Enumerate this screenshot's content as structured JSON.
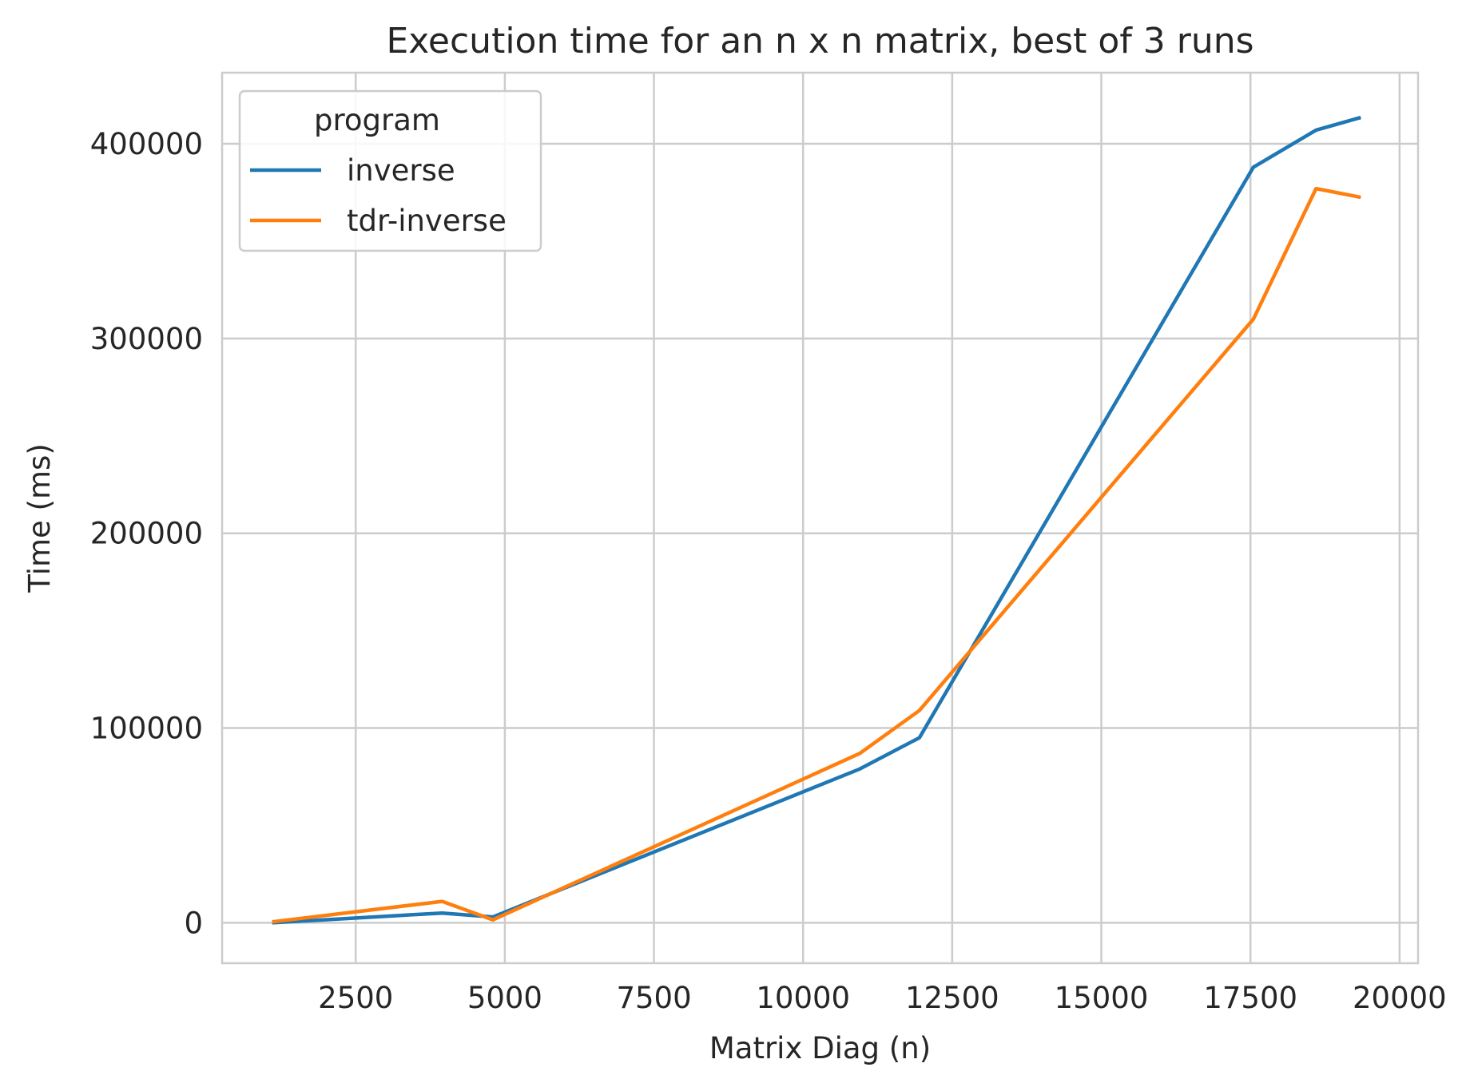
{
  "chart_data": {
    "type": "line",
    "title": "Execution time for an n x n matrix, best of 3 runs",
    "xlabel": "Matrix Diag (n)",
    "ylabel": "Time (ms)",
    "xlim": [
      260,
      20310
    ],
    "ylim": [
      -20750,
      436500
    ],
    "xticks": [
      2500,
      5000,
      7500,
      10000,
      12500,
      15000,
      17500,
      20000
    ],
    "xtick_labels": [
      "2500",
      "5000",
      "7500",
      "10000",
      "12500",
      "15000",
      "17500",
      "20000"
    ],
    "yticks": [
      0,
      100000,
      200000,
      300000,
      400000
    ],
    "ytick_labels": [
      "0",
      "100000",
      "200000",
      "300000",
      "400000"
    ],
    "grid": true,
    "legend": {
      "title": "program",
      "placement": "upper-left"
    },
    "series": [
      {
        "name": "inverse",
        "color": "#1f77b4",
        "x": [
          1100,
          3950,
          4800,
          10950,
          11950,
          17550,
          18600,
          19350
        ],
        "y": [
          0,
          5000,
          3000,
          79000,
          95000,
          388000,
          407000,
          413500
        ]
      },
      {
        "name": "tdr-inverse",
        "color": "#ff7f0e",
        "x": [
          1100,
          3950,
          4800,
          10950,
          11950,
          17550,
          18600,
          19350
        ],
        "y": [
          500,
          11000,
          1500,
          87000,
          109000,
          310000,
          377000,
          372500
        ]
      }
    ]
  }
}
